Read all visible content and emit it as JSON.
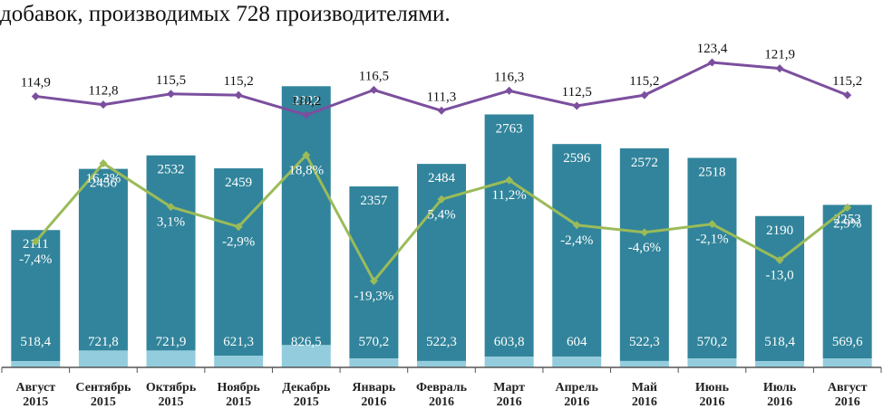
{
  "caption": "добавок, производимых 728 производителями.",
  "chart_data": {
    "type": "bar",
    "stacked": true,
    "categories": [
      [
        "Август",
        "2015"
      ],
      [
        "Сентябрь",
        "2015"
      ],
      [
        "Октябрь",
        "2015"
      ],
      [
        "Ноябрь",
        "2015"
      ],
      [
        "Декабрь",
        "2015"
      ],
      [
        "Январь",
        "2016"
      ],
      [
        "Февраль",
        "2016"
      ],
      [
        "Март",
        "2016"
      ],
      [
        "Апрель",
        "2016"
      ],
      [
        "Май",
        "2016"
      ],
      [
        "Июнь",
        "2016"
      ],
      [
        "Июль",
        "2016"
      ],
      [
        "Август",
        "2016"
      ]
    ],
    "series": [
      {
        "kind": "bar",
        "color": "#93cddd",
        "values": [
          518.4,
          721.8,
          721.9,
          621.3,
          826.5,
          570.2,
          522.3,
          603.8,
          604,
          522.3,
          570.2,
          518.4,
          569.6
        ],
        "labels": [
          "518,4",
          "721,8",
          "721,9",
          "621,3",
          "826,5",
          "570,2",
          "522,3",
          "603,8",
          "604",
          "522,3",
          "570,2",
          "518,4",
          "569,6"
        ]
      },
      {
        "kind": "bar",
        "color": "#31849b",
        "values": [
          2111,
          2456,
          2532,
          2459,
          2922,
          2357,
          2484,
          2763,
          2596,
          2572,
          2518,
          2190,
          2253
        ],
        "labels": [
          "2111",
          "2456",
          "2532",
          "2459",
          "2922",
          "2357",
          "2484",
          "2763",
          "2596",
          "2572",
          "2518",
          "2190",
          "2253"
        ]
      },
      {
        "kind": "line",
        "color": "#7b4f9e",
        "values": [
          114.9,
          112.8,
          115.5,
          115.2,
          110.2,
          116.5,
          111.3,
          116.3,
          112.5,
          115.2,
          123.4,
          121.9,
          115.2
        ],
        "labels": [
          "114,9",
          "112,8",
          "115,5",
          "115,2",
          "110,2",
          "116,5",
          "111,3",
          "116,3",
          "112,5",
          "115,2",
          "123,4",
          "121,9",
          "115,2"
        ]
      },
      {
        "kind": "line",
        "color": "#9bbb59",
        "values": [
          -7.4,
          16.3,
          3.1,
          -2.9,
          18.8,
          -19.3,
          5.4,
          11.2,
          -2.4,
          -4.6,
          -2.1,
          -13.0,
          2.9
        ],
        "labels": [
          "-7,4%",
          "16,3%",
          "3,1%",
          "-2,9%",
          "18,8%",
          "-19,3%",
          "5,4%",
          "11,2%",
          "-2,4%",
          "-4,6%",
          "-2,1%",
          "-13,0",
          "2,9%"
        ]
      }
    ],
    "legend": "none",
    "grid": false
  }
}
